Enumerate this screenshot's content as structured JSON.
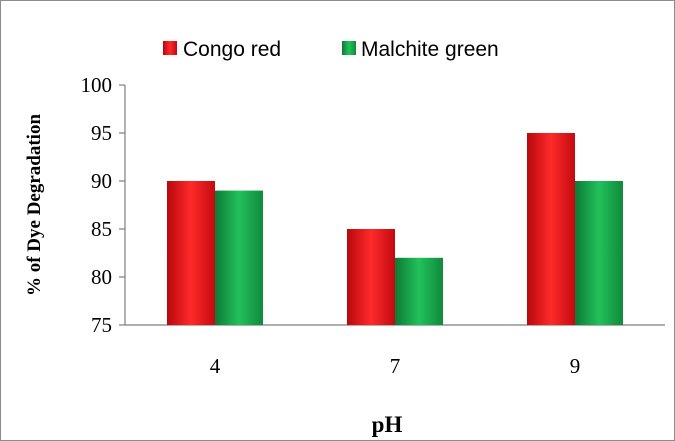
{
  "chart_data": {
    "type": "bar",
    "categories": [
      "4",
      "7",
      "9"
    ],
    "series": [
      {
        "name": "Congo red",
        "values": [
          90,
          85,
          95
        ],
        "color": "#e8141b"
      },
      {
        "name": "Malchite green",
        "values": [
          89,
          82,
          90
        ],
        "color": "#17a34a"
      }
    ],
    "xlabel": "pH",
    "ylabel": "% of Dye Degradation",
    "ylim": [
      75,
      100
    ],
    "yticks": [
      75,
      80,
      85,
      90,
      95,
      100
    ],
    "grid": false,
    "legend_position": "top-center"
  }
}
